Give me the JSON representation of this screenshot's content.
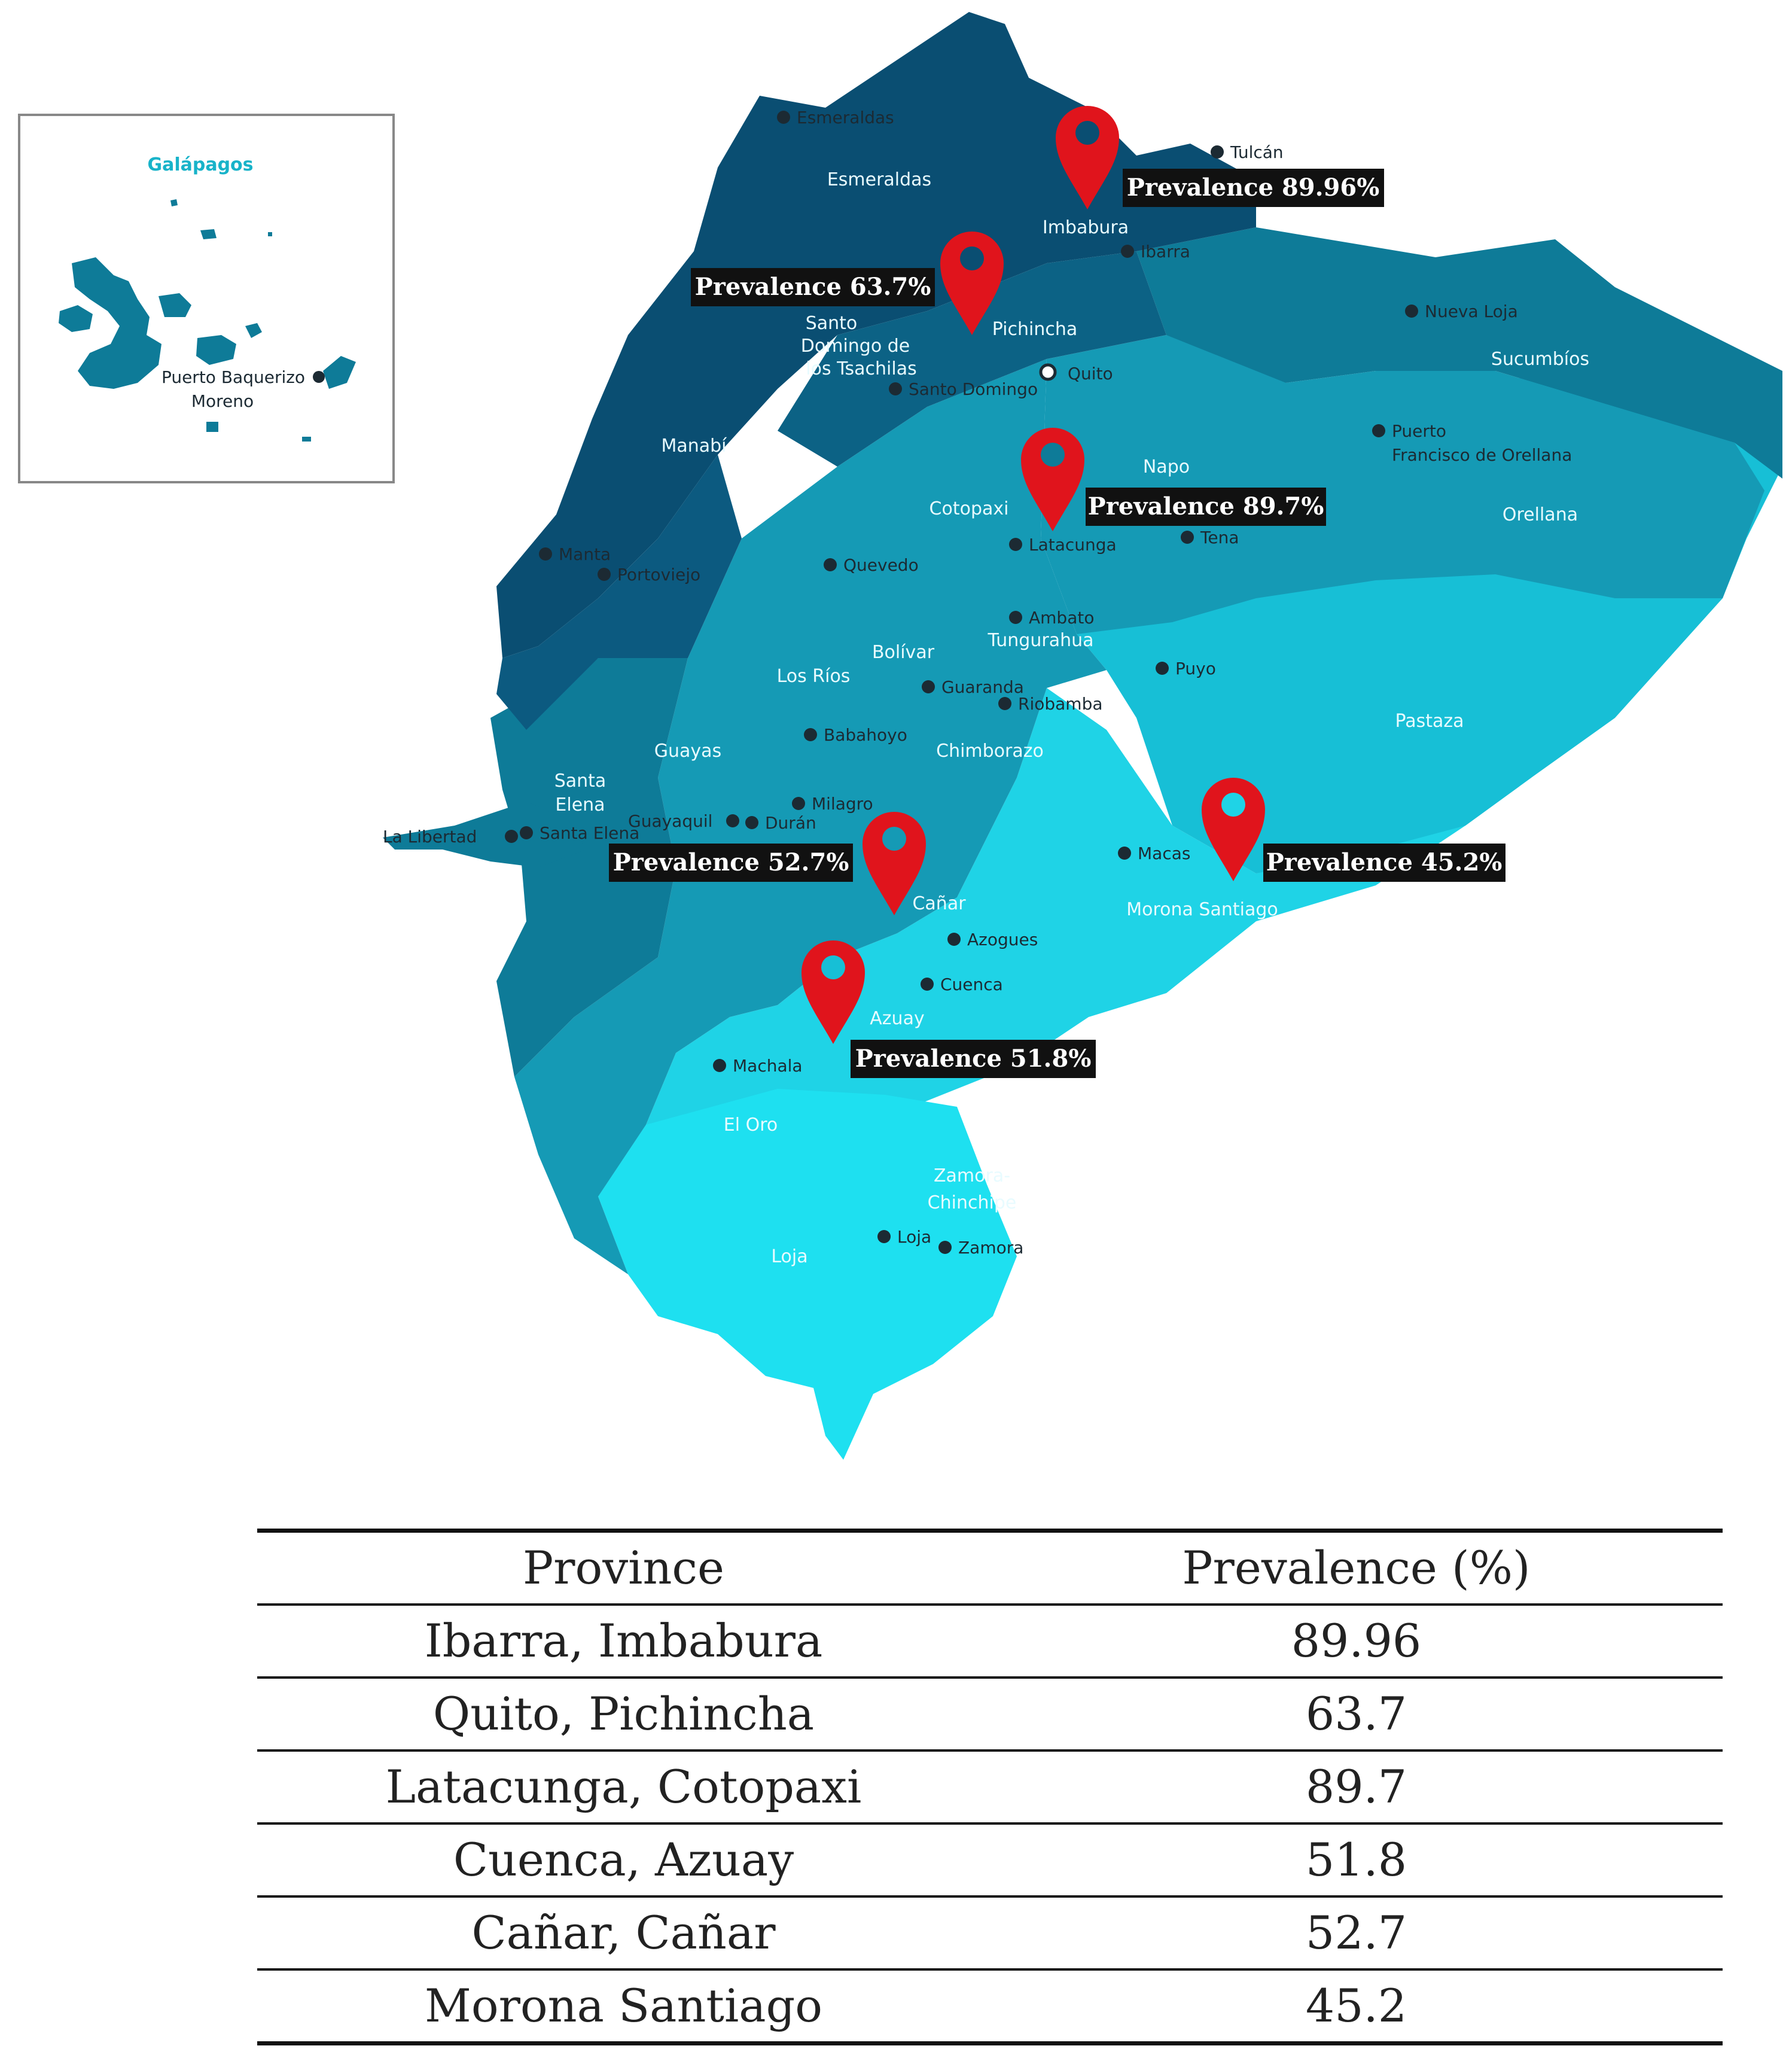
{
  "inset": {
    "title": "Galápagos",
    "city": "Puerto Baquerizo Moreno",
    "city_line1": "Puerto Baquerizo",
    "city_line2": "Moreno"
  },
  "colors": {
    "dark": "#0a4e72",
    "mid": "#0e7b98",
    "teal": "#159ab5",
    "light": "#17bfd6",
    "lightest": "#1fd3e6",
    "pin": "#e0141c",
    "callout": "#111111"
  },
  "provinces": {
    "esmeraldas": "Esmeraldas",
    "imbabura": "Imbabura",
    "pichincha": "Pichincha",
    "santo_domingo_l1": "Santo",
    "santo_domingo_l2": "Domingo de",
    "santo_domingo_l3": "los Tsachilas",
    "manabi": "Manabí",
    "cotopaxi": "Cotopaxi",
    "napo": "Napo",
    "sucumbios": "Sucumbíos",
    "orellana": "Orellana",
    "bolivar": "Bolívar",
    "los_rios": "Los Ríos",
    "tungurahua": "Tungurahua",
    "guayas": "Guayas",
    "santa_elena_l1": "Santa",
    "santa_elena_l2": "Elena",
    "chimborazo": "Chimborazo",
    "pastaza": "Pastaza",
    "canar": "Cañar",
    "morona_santiago": "Morona Santiago",
    "azuay": "Azuay",
    "el_oro": "El Oro",
    "zamora_l1": "Zamora-",
    "zamora_l2": "Chinchipe",
    "loja": "Loja"
  },
  "cities": {
    "esmeraldas": "Esmeraldas",
    "tulcan": "Tulcán",
    "ibarra": "Ibarra",
    "nueva_loja": "Nueva Loja",
    "quito": "Quito",
    "santo_domingo": "Santo Domingo",
    "puerto_orellana_l1": "Puerto",
    "puerto_orellana_l2": "Francisco de Orellana",
    "manta": "Manta",
    "portoviejo": "Portoviejo",
    "quevedo": "Quevedo",
    "latacunga": "Latacunga",
    "tena": "Tena",
    "ambato": "Ambato",
    "puyo": "Puyo",
    "guaranda": "Guaranda",
    "riobamba": "Riobamba",
    "babahoyo": "Babahoyo",
    "milagro": "Milagro",
    "guayaquil": "Guayaquil",
    "duran": "Durán",
    "la_libertad": "La Libertad",
    "santa_elena": "Santa Elena",
    "macas": "Macas",
    "azogues": "Azogues",
    "cuenca": "Cuenca",
    "machala": "Machala",
    "loja": "Loja",
    "zamora": "Zamora"
  },
  "callouts": [
    "Prevalence 89.96%",
    "Prevalence 63.7%",
    "Prevalence 89.7%",
    "Prevalence 52.7%",
    "Prevalence 45.2%",
    "Prevalence 51.8%"
  ],
  "table": {
    "headers": [
      "Province",
      "Prevalence (%)"
    ],
    "rows": [
      {
        "province": "Ibarra, Imbabura",
        "prevalence": "89.96"
      },
      {
        "province": "Quito, Pichincha",
        "prevalence": "63.7"
      },
      {
        "province": "Latacunga, Cotopaxi",
        "prevalence": "89.7"
      },
      {
        "province": "Cuenca, Azuay",
        "prevalence": "51.8"
      },
      {
        "province": "Cañar, Cañar",
        "prevalence": "52.7"
      },
      {
        "province": "Morona Santiago",
        "prevalence": "45.2"
      }
    ]
  }
}
